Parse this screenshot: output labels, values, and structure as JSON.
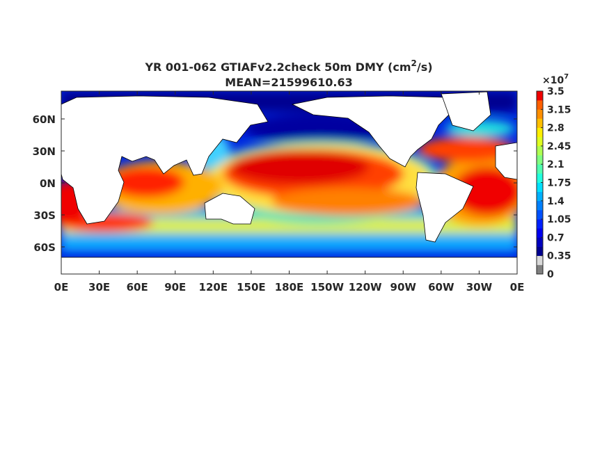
{
  "title": {
    "text": "YR 001-062 GTIAFv2.2check 50m DMY (cm",
    "superscript": "2",
    "suffix": "/s)"
  },
  "subtitle": "MEAN=21599610.63",
  "map": {
    "x_tick_labels": [
      "0E",
      "30E",
      "60E",
      "90E",
      "120E",
      "150E",
      "180E",
      "150W",
      "120W",
      "90W",
      "60W",
      "30W",
      "0E"
    ],
    "y_tick_labels": [
      "60N",
      "30N",
      "0N",
      "30S",
      "60S"
    ]
  },
  "colorbar": {
    "multiplier": "×10",
    "exponent": "7",
    "ticks": [
      0,
      0.35,
      0.7,
      1.05,
      1.4,
      1.75,
      2.1,
      2.45,
      2.8,
      3.15,
      3.5
    ]
  }
}
